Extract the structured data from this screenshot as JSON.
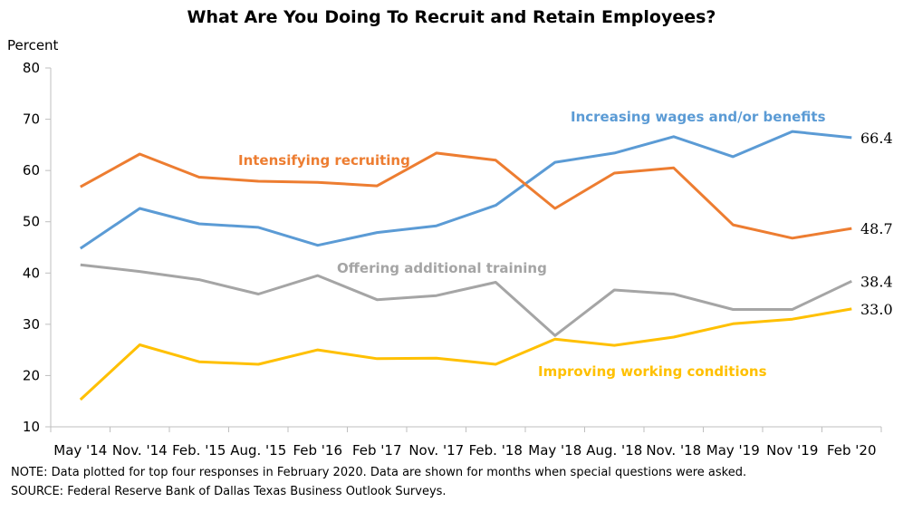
{
  "chart_data": {
    "type": "line",
    "title": "What Are You Doing To Recruit and Retain Employees?",
    "ylabel": "Percent",
    "xlabel": "",
    "ylim": [
      10,
      80
    ],
    "yticks": [
      10,
      20,
      30,
      40,
      50,
      60,
      70,
      80
    ],
    "grid": false,
    "categories": [
      "May '14",
      "Nov. '14",
      "Feb. '15",
      "Aug. '15",
      "Feb '16",
      "Feb '17",
      "Nov. '17",
      "Feb. '18",
      "May '18",
      "Aug. '18",
      "Nov. '18",
      "May '19",
      "Nov '19",
      "Feb '20"
    ],
    "series": [
      {
        "name": "Increasing wages and/or benefits",
        "color": "#5b9bd5",
        "values": [
          44.8,
          52.6,
          49.6,
          48.9,
          45.4,
          47.9,
          49.2,
          53.2,
          61.6,
          63.4,
          66.6,
          62.7,
          67.6,
          66.4
        ],
        "end_label": "66.4"
      },
      {
        "name": "Intensifying recruiting",
        "color": "#ed7d31",
        "values": [
          56.8,
          63.2,
          58.7,
          57.9,
          57.7,
          57.0,
          63.4,
          62.0,
          52.6,
          59.5,
          60.5,
          49.4,
          46.8,
          48.7
        ],
        "end_label": "48.7"
      },
      {
        "name": "Offering additional training",
        "color": "#a5a5a5",
        "values": [
          41.6,
          40.3,
          38.7,
          35.9,
          39.5,
          34.8,
          35.6,
          38.2,
          27.8,
          36.7,
          35.9,
          32.9,
          32.9,
          38.4
        ],
        "end_label": "38.4"
      },
      {
        "name": "Improving working conditions",
        "color": "#ffc000",
        "values": [
          15.3,
          26.0,
          22.7,
          22.2,
          25.0,
          23.3,
          23.4,
          22.2,
          27.1,
          25.9,
          27.5,
          30.1,
          31.0,
          33.0
        ],
        "end_label": "33.0"
      }
    ]
  },
  "notes": {
    "note": "NOTE: Data plotted for top four responses in February 2020. Data are shown for months when special questions were asked.",
    "source": "SOURCE: Federal Reserve Bank of Dallas Texas Business Outlook Surveys."
  },
  "colors": {
    "axis": "#bfbfbf"
  }
}
